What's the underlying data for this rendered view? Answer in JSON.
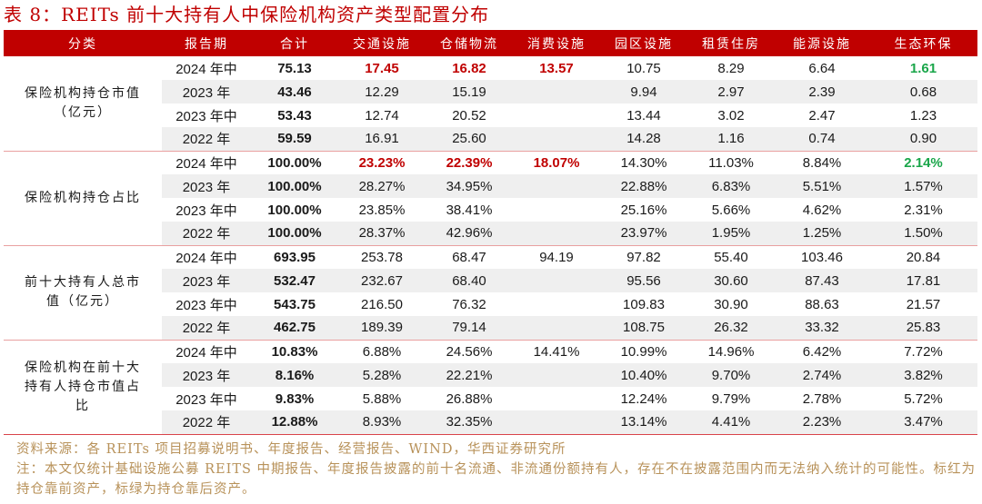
{
  "title": "表 8：REITs 前十大持有人中保险机构资产类型配置分布",
  "colors": {
    "header_bg": "#c00000",
    "header_text": "#ffffff",
    "highlight_red": "#c00000",
    "highlight_green": "#1aa64a",
    "row_shade": "#efefef",
    "footer_text": "#b8925a"
  },
  "table": {
    "headers": [
      "分类",
      "报告期",
      "合计",
      "交通设施",
      "仓储物流",
      "消费设施",
      "园区设施",
      "租赁住房",
      "能源设施",
      "生态环保"
    ],
    "groups": [
      {
        "label": "保险机构持仓市值（亿元）",
        "rows": [
          {
            "period": "2024 年中",
            "values": [
              "75.13",
              "17.45",
              "16.82",
              "13.57",
              "10.75",
              "8.29",
              "6.64",
              "1.61"
            ],
            "highlight": [
              "",
              "red",
              "red",
              "red",
              "",
              "",
              "",
              "green"
            ]
          },
          {
            "period": "2023 年",
            "values": [
              "43.46",
              "12.29",
              "15.19",
              "",
              "9.94",
              "2.97",
              "2.39",
              "0.68"
            ],
            "highlight": [
              "",
              "",
              "",
              "",
              "",
              "",
              "",
              ""
            ]
          },
          {
            "period": "2023 年中",
            "values": [
              "53.43",
              "12.74",
              "20.52",
              "",
              "13.44",
              "3.02",
              "2.47",
              "1.23"
            ],
            "highlight": [
              "",
              "",
              "",
              "",
              "",
              "",
              "",
              ""
            ]
          },
          {
            "period": "2022 年",
            "values": [
              "59.59",
              "16.91",
              "25.60",
              "",
              "14.28",
              "1.16",
              "0.74",
              "0.90"
            ],
            "highlight": [
              "",
              "",
              "",
              "",
              "",
              "",
              "",
              ""
            ]
          }
        ]
      },
      {
        "label": "保险机构持仓占比",
        "rows": [
          {
            "period": "2024 年中",
            "values": [
              "100.00%",
              "23.23%",
              "22.39%",
              "18.07%",
              "14.30%",
              "11.03%",
              "8.84%",
              "2.14%"
            ],
            "highlight": [
              "",
              "red",
              "red",
              "red",
              "",
              "",
              "",
              "green"
            ]
          },
          {
            "period": "2023 年",
            "values": [
              "100.00%",
              "28.27%",
              "34.95%",
              "",
              "22.88%",
              "6.83%",
              "5.51%",
              "1.57%"
            ],
            "highlight": [
              "",
              "",
              "",
              "",
              "",
              "",
              "",
              ""
            ]
          },
          {
            "period": "2023 年中",
            "values": [
              "100.00%",
              "23.85%",
              "38.41%",
              "",
              "25.16%",
              "5.66%",
              "4.62%",
              "2.31%"
            ],
            "highlight": [
              "",
              "",
              "",
              "",
              "",
              "",
              "",
              ""
            ]
          },
          {
            "period": "2022 年",
            "values": [
              "100.00%",
              "28.37%",
              "42.96%",
              "",
              "23.97%",
              "1.95%",
              "1.25%",
              "1.50%"
            ],
            "highlight": [
              "",
              "",
              "",
              "",
              "",
              "",
              "",
              ""
            ]
          }
        ]
      },
      {
        "label": "前十大持有人总市值（亿元）",
        "rows": [
          {
            "period": "2024 年中",
            "values": [
              "693.95",
              "253.78",
              "68.47",
              "94.19",
              "97.82",
              "55.40",
              "103.46",
              "20.84"
            ],
            "highlight": [
              "",
              "",
              "",
              "",
              "",
              "",
              "",
              ""
            ]
          },
          {
            "period": "2023 年",
            "values": [
              "532.47",
              "232.67",
              "68.40",
              "",
              "95.56",
              "30.60",
              "87.43",
              "17.81"
            ],
            "highlight": [
              "",
              "",
              "",
              "",
              "",
              "",
              "",
              ""
            ]
          },
          {
            "period": "2023 年中",
            "values": [
              "543.75",
              "216.50",
              "76.32",
              "",
              "109.83",
              "30.90",
              "88.63",
              "21.57"
            ],
            "highlight": [
              "",
              "",
              "",
              "",
              "",
              "",
              "",
              ""
            ]
          },
          {
            "period": "2022 年",
            "values": [
              "462.75",
              "189.39",
              "79.14",
              "",
              "108.75",
              "26.32",
              "33.32",
              "25.83"
            ],
            "highlight": [
              "",
              "",
              "",
              "",
              "",
              "",
              "",
              ""
            ]
          }
        ]
      },
      {
        "label": "保险机构在前十大持有人持仓市值占比",
        "rows": [
          {
            "period": "2024 年中",
            "values": [
              "10.83%",
              "6.88%",
              "24.56%",
              "14.41%",
              "10.99%",
              "14.96%",
              "6.42%",
              "7.72%"
            ],
            "highlight": [
              "",
              "",
              "",
              "",
              "",
              "",
              "",
              ""
            ]
          },
          {
            "period": "2023 年",
            "values": [
              "8.16%",
              "5.28%",
              "22.21%",
              "",
              "10.40%",
              "9.70%",
              "2.74%",
              "3.82%"
            ],
            "highlight": [
              "",
              "",
              "",
              "",
              "",
              "",
              "",
              ""
            ]
          },
          {
            "period": "2023 年中",
            "values": [
              "9.83%",
              "5.88%",
              "26.88%",
              "",
              "12.24%",
              "9.79%",
              "2.78%",
              "5.72%"
            ],
            "highlight": [
              "",
              "",
              "",
              "",
              "",
              "",
              "",
              ""
            ]
          },
          {
            "period": "2022 年",
            "values": [
              "12.88%",
              "8.93%",
              "32.35%",
              "",
              "13.14%",
              "4.41%",
              "2.23%",
              "3.47%"
            ],
            "highlight": [
              "",
              "",
              "",
              "",
              "",
              "",
              "",
              ""
            ]
          }
        ]
      }
    ]
  },
  "footer": {
    "source": "资料来源：各 REITs 项目招募说明书、年度报告、经营报告、WIND，华西证券研究所",
    "note": "注：本文仅统计基础设施公募 REITS 中期报告、年度报告披露的前十名流通、非流通份额持有人，存在不在披露范围内而无法纳入统计的可能性。标红为持仓靠前资产，标绿为持仓靠后资产。"
  }
}
